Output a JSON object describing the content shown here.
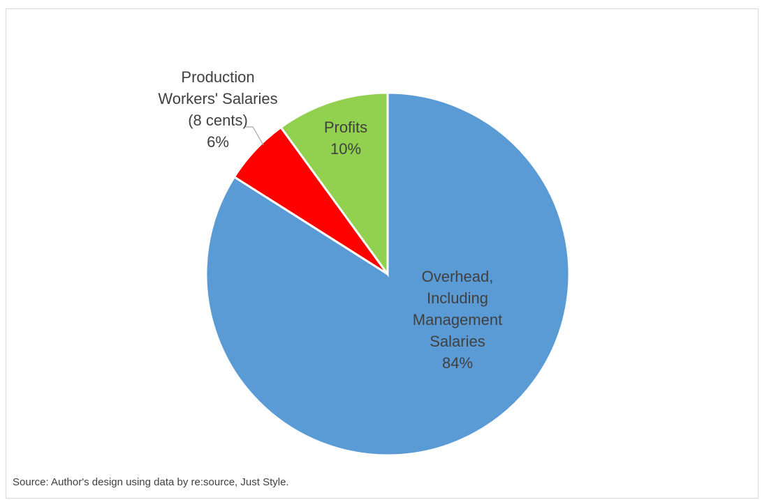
{
  "chart_data": {
    "type": "pie",
    "start_angle_deg": 0,
    "direction": "clockwise",
    "slices": [
      {
        "name": "Overhead, Including Management Salaries",
        "label_lines": [
          "Overhead,",
          "Including",
          "Management",
          "Salaries",
          "84%"
        ],
        "value": 84,
        "color": "#5b9bd5"
      },
      {
        "name": "Production Workers' Salaries (8 cents)",
        "label_lines": [
          "Production",
          "Workers' Salaries",
          "(8 cents)",
          "6%"
        ],
        "value": 6,
        "color": "#ff0000"
      },
      {
        "name": "Profits",
        "label_lines": [
          "Profits",
          "10%"
        ],
        "value": 10,
        "color": "#92d050"
      }
    ]
  },
  "source_note": "Source: Author's design using data by re:source, Just Style."
}
